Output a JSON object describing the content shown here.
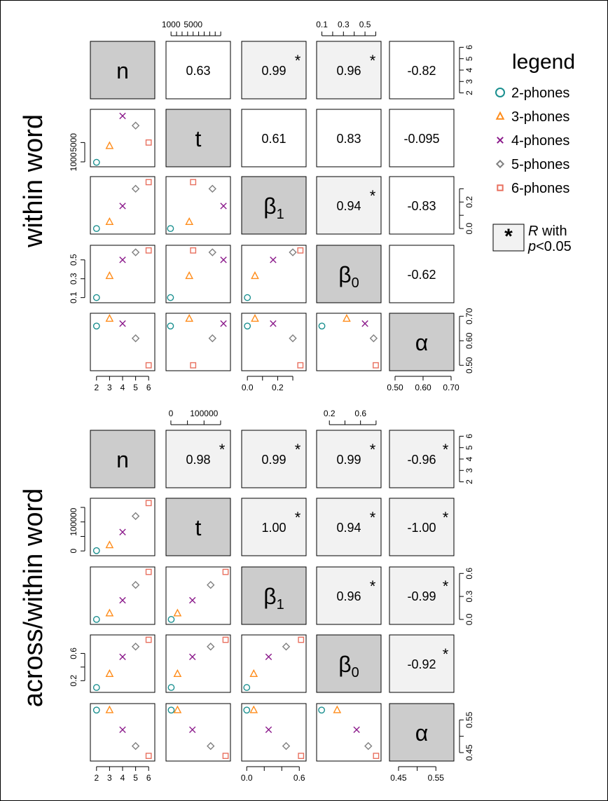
{
  "legend": {
    "title": "legend",
    "items": [
      {
        "label": "2-phones",
        "marker": "circle",
        "color": "#1a8f8f"
      },
      {
        "label": "3-phones",
        "marker": "triangle",
        "color": "#ff8c1a"
      },
      {
        "label": "4-phones",
        "marker": "cross",
        "color": "#8b1a8b"
      },
      {
        "label": "5-phones",
        "marker": "diamond",
        "color": "#808080"
      },
      {
        "label": "6-phones",
        "marker": "square",
        "color": "#e8705f"
      }
    ],
    "sig_star": "*",
    "sig_line1_italic": "R",
    "sig_line1_rest": " with",
    "sig_line2_italic": "p",
    "sig_line2_rest": "<0.05"
  },
  "chart_data": [
    {
      "type": "scatter-matrix",
      "title": "within word",
      "variables": [
        "n",
        "t",
        "β1",
        "β0",
        "α"
      ],
      "variable_display": [
        {
          "main": "n",
          "sub": ""
        },
        {
          "main": "t",
          "sub": ""
        },
        {
          "main": "β",
          "sub": "1"
        },
        {
          "main": "β",
          "sub": "0"
        },
        {
          "main": "α",
          "sub": ""
        }
      ],
      "points": {
        "n": [
          2,
          3,
          4,
          5,
          6
        ],
        "t": [
          900,
          4300,
          10500,
          8500,
          5000
        ],
        "β1": [
          0.0,
          0.05,
          0.17,
          0.3,
          0.35
        ],
        "β0": [
          0.1,
          0.33,
          0.5,
          0.58,
          0.6
        ],
        "α": [
          0.66,
          0.69,
          0.67,
          0.61,
          0.5
        ]
      },
      "ranges": {
        "n": [
          1.85,
          6.15
        ],
        "t": [
          850,
          11000
        ],
        "β1": [
          -0.01,
          0.36
        ],
        "β0": [
          0.09,
          0.61
        ],
        "α": [
          0.495,
          0.695
        ]
      },
      "correlations": [
        {
          "row": 0,
          "col": 1,
          "r": "0.63",
          "sig": false
        },
        {
          "row": 0,
          "col": 2,
          "r": "0.99",
          "sig": true
        },
        {
          "row": 0,
          "col": 3,
          "r": "0.96",
          "sig": true
        },
        {
          "row": 0,
          "col": 4,
          "r": "-0.82",
          "sig": false
        },
        {
          "row": 1,
          "col": 2,
          "r": "0.61",
          "sig": false
        },
        {
          "row": 1,
          "col": 3,
          "r": "0.83",
          "sig": false
        },
        {
          "row": 1,
          "col": 4,
          "r": "-0.095",
          "sig": false
        },
        {
          "row": 2,
          "col": 3,
          "r": "0.94",
          "sig": true
        },
        {
          "row": 2,
          "col": 4,
          "r": "-0.83",
          "sig": false
        },
        {
          "row": 3,
          "col": 4,
          "r": "-0.62",
          "sig": false
        }
      ],
      "axes": {
        "top": [
          {
            "col": 1,
            "var": "t",
            "ticks": [
              1000,
              2000,
              3000,
              4000,
              5000,
              6000,
              7000,
              8000,
              9000,
              10000
            ],
            "labels": [
              {
                "value": 1000,
                "text": "1000"
              },
              {
                "value": 5000,
                "text": "5000"
              }
            ]
          },
          {
            "col": 3,
            "var": "β0",
            "ticks": [
              0.1,
              0.2,
              0.3,
              0.4,
              0.5,
              0.6
            ],
            "labels": [
              {
                "value": 0.1,
                "text": "0.1"
              },
              {
                "value": 0.3,
                "text": "0.3"
              },
              {
                "value": 0.5,
                "text": "0.5"
              }
            ]
          }
        ],
        "bottom": [
          {
            "col": 0,
            "var": "n",
            "ticks": [
              2,
              3,
              4,
              5,
              6
            ],
            "labels": [
              {
                "value": 2,
                "text": "2"
              },
              {
                "value": 3,
                "text": "3"
              },
              {
                "value": 4,
                "text": "4"
              },
              {
                "value": 5,
                "text": "5"
              },
              {
                "value": 6,
                "text": "6"
              }
            ]
          },
          {
            "col": 2,
            "var": "β1",
            "ticks": [
              0.0,
              0.1,
              0.2,
              0.3
            ],
            "labels": [
              {
                "value": 0.0,
                "text": "0.0"
              },
              {
                "value": 0.2,
                "text": "0.2"
              }
            ]
          },
          {
            "col": 4,
            "var": "α",
            "ticks": [
              0.5,
              0.6,
              0.7
            ],
            "labels": [
              {
                "value": 0.5,
                "text": "0.50"
              },
              {
                "value": 0.6,
                "text": "0.60"
              },
              {
                "value": 0.7,
                "text": "0.70"
              }
            ]
          }
        ],
        "left": [
          {
            "row": 1,
            "var": "t",
            "ticks": [
              1000,
              5000
            ],
            "labels": [
              {
                "value": 1000,
                "text": "1000"
              },
              {
                "value": 5000,
                "text": "5000"
              }
            ]
          },
          {
            "row": 3,
            "var": "β0",
            "ticks": [
              0.1,
              0.3,
              0.5
            ],
            "labels": [
              {
                "value": 0.1,
                "text": "0.1"
              },
              {
                "value": 0.3,
                "text": "0.3"
              },
              {
                "value": 0.5,
                "text": "0.5"
              }
            ]
          }
        ],
        "right": [
          {
            "row": 0,
            "var": "n",
            "ticks": [
              2,
              3,
              4,
              5,
              6
            ],
            "labels": [
              {
                "value": 2,
                "text": "2"
              },
              {
                "value": 3,
                "text": "3"
              },
              {
                "value": 4,
                "text": "4"
              },
              {
                "value": 5,
                "text": "5"
              },
              {
                "value": 6,
                "text": "6"
              }
            ]
          },
          {
            "row": 2,
            "var": "β1",
            "ticks": [
              0.0,
              0.1,
              0.2,
              0.3
            ],
            "labels": [
              {
                "value": 0.0,
                "text": "0.0"
              },
              {
                "value": 0.2,
                "text": "0.2"
              }
            ]
          },
          {
            "row": 4,
            "var": "α",
            "ticks": [
              0.5,
              0.6,
              0.7
            ],
            "labels": [
              {
                "value": 0.5,
                "text": "0.50"
              },
              {
                "value": 0.6,
                "text": "0.60"
              },
              {
                "value": 0.7,
                "text": "0.70"
              }
            ]
          }
        ]
      }
    },
    {
      "type": "scatter-matrix",
      "title": "across/within word",
      "variables": [
        "n",
        "t",
        "β1",
        "β0",
        "α"
      ],
      "variable_display": [
        {
          "main": "n",
          "sub": ""
        },
        {
          "main": "t",
          "sub": ""
        },
        {
          "main": "β",
          "sub": "1"
        },
        {
          "main": "β",
          "sub": "0"
        },
        {
          "main": "α",
          "sub": ""
        }
      ],
      "points": {
        "n": [
          2,
          3,
          4,
          5,
          6
        ],
        "t": [
          1000,
          20000,
          65000,
          120000,
          165000
        ],
        "β1": [
          0.0,
          0.08,
          0.25,
          0.45,
          0.62
        ],
        "β0": [
          0.1,
          0.3,
          0.55,
          0.7,
          0.8
        ],
        "α": [
          0.58,
          0.58,
          0.52,
          0.47,
          0.44
        ]
      },
      "ranges": {
        "n": [
          1.85,
          6.15
        ],
        "t": [
          -2000,
          167000
        ],
        "β1": [
          -0.01,
          0.63
        ],
        "β0": [
          0.09,
          0.81
        ],
        "α": [
          0.437,
          0.587
        ]
      },
      "correlations": [
        {
          "row": 0,
          "col": 1,
          "r": "0.98",
          "sig": true
        },
        {
          "row": 0,
          "col": 2,
          "r": "0.99",
          "sig": true
        },
        {
          "row": 0,
          "col": 3,
          "r": "0.99",
          "sig": true
        },
        {
          "row": 0,
          "col": 4,
          "r": "-0.96",
          "sig": true
        },
        {
          "row": 1,
          "col": 2,
          "r": "1.00",
          "sig": true
        },
        {
          "row": 1,
          "col": 3,
          "r": "0.94",
          "sig": true
        },
        {
          "row": 1,
          "col": 4,
          "r": "-1.00",
          "sig": true
        },
        {
          "row": 2,
          "col": 3,
          "r": "0.96",
          "sig": true
        },
        {
          "row": 2,
          "col": 4,
          "r": "-0.99",
          "sig": true
        },
        {
          "row": 3,
          "col": 4,
          "r": "-0.92",
          "sig": true
        }
      ],
      "axes": {
        "top": [
          {
            "col": 1,
            "var": "t",
            "ticks": [
              0,
              50000,
              100000,
              150000
            ],
            "labels": [
              {
                "value": 0,
                "text": "0"
              },
              {
                "value": 100000,
                "text": "100000"
              }
            ]
          },
          {
            "col": 3,
            "var": "β0",
            "ticks": [
              0.2,
              0.4,
              0.6,
              0.8
            ],
            "labels": [
              {
                "value": 0.2,
                "text": "0.2"
              },
              {
                "value": 0.6,
                "text": "0.6"
              }
            ]
          }
        ],
        "bottom": [
          {
            "col": 0,
            "var": "n",
            "ticks": [
              2,
              3,
              4,
              5,
              6
            ],
            "labels": [
              {
                "value": 2,
                "text": "2"
              },
              {
                "value": 3,
                "text": "3"
              },
              {
                "value": 4,
                "text": "4"
              },
              {
                "value": 5,
                "text": "5"
              },
              {
                "value": 6,
                "text": "6"
              }
            ]
          },
          {
            "col": 2,
            "var": "β1",
            "ticks": [
              0.0,
              0.2,
              0.4,
              0.6
            ],
            "labels": [
              {
                "value": 0.0,
                "text": "0.0"
              },
              {
                "value": 0.6,
                "text": "0.6"
              }
            ]
          },
          {
            "col": 4,
            "var": "α",
            "ticks": [
              0.45,
              0.5,
              0.55
            ],
            "labels": [
              {
                "value": 0.45,
                "text": "0.45"
              },
              {
                "value": 0.55,
                "text": "0.55"
              }
            ]
          }
        ],
        "left": [
          {
            "row": 1,
            "var": "t",
            "ticks": [
              0,
              50000,
              100000,
              150000
            ],
            "labels": [
              {
                "value": 0,
                "text": "0"
              },
              {
                "value": 100000,
                "text": "100000"
              }
            ]
          },
          {
            "row": 3,
            "var": "β0",
            "ticks": [
              0.2,
              0.4,
              0.6
            ],
            "labels": [
              {
                "value": 0.2,
                "text": "0.2"
              },
              {
                "value": 0.6,
                "text": "0.6"
              }
            ]
          }
        ],
        "right": [
          {
            "row": 0,
            "var": "n",
            "ticks": [
              2,
              3,
              4,
              5,
              6
            ],
            "labels": [
              {
                "value": 2,
                "text": "2"
              },
              {
                "value": 3,
                "text": "3"
              },
              {
                "value": 4,
                "text": "4"
              },
              {
                "value": 5,
                "text": "5"
              },
              {
                "value": 6,
                "text": "6"
              }
            ]
          },
          {
            "row": 2,
            "var": "β1",
            "ticks": [
              0.0,
              0.3,
              0.6
            ],
            "labels": [
              {
                "value": 0.0,
                "text": "0.0"
              },
              {
                "value": 0.3,
                "text": "0.3"
              },
              {
                "value": 0.6,
                "text": "0.6"
              }
            ]
          },
          {
            "row": 4,
            "var": "α",
            "ticks": [
              0.45,
              0.5,
              0.55
            ],
            "labels": [
              {
                "value": 0.45,
                "text": "0.45"
              },
              {
                "value": 0.55,
                "text": "0.55"
              }
            ]
          }
        ]
      }
    }
  ]
}
